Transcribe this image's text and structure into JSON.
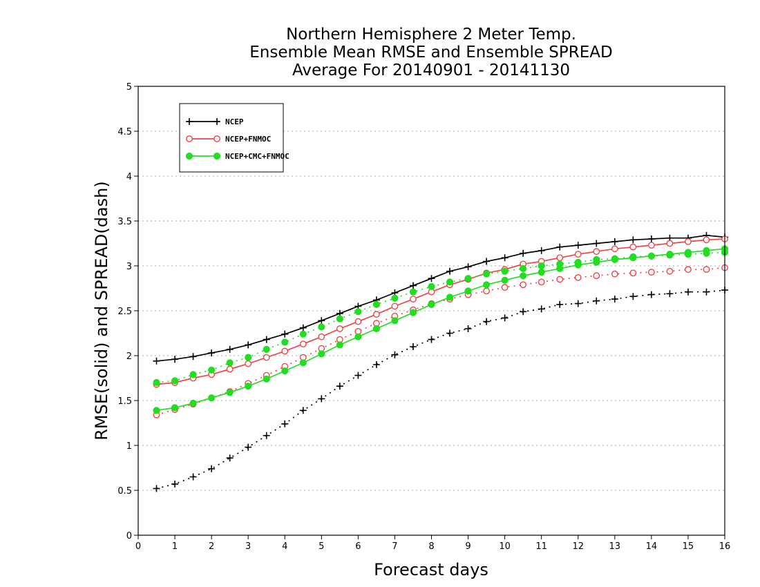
{
  "chart_data": {
    "type": "line",
    "title": [
      "Northern Hemisphere 2 Meter Temp.",
      "Ensemble Mean RMSE and Ensemble SPREAD",
      "Average For 20140901 - 20141130"
    ],
    "xlabel": "Forecast days",
    "ylabel": "RMSE(solid) and SPREAD(dash)",
    "xlim": [
      0,
      16
    ],
    "ylim": [
      0,
      5
    ],
    "xticks": [
      0,
      1,
      2,
      3,
      4,
      5,
      6,
      7,
      8,
      9,
      10,
      11,
      12,
      13,
      14,
      15,
      16
    ],
    "yticks": [
      0,
      0.5,
      1,
      1.5,
      2,
      2.5,
      3,
      3.5,
      4,
      4.5,
      5
    ],
    "grid": "horizontal dotted",
    "legend_position": "top-left",
    "x": [
      0.5,
      1,
      1.5,
      2,
      2.5,
      3,
      3.5,
      4,
      4.5,
      5,
      5.5,
      6,
      6.5,
      7,
      7.5,
      8,
      8.5,
      9,
      9.5,
      10,
      10.5,
      11,
      11.5,
      12,
      12.5,
      13,
      13.5,
      14,
      14.5,
      15,
      15.5,
      16
    ],
    "series": [
      {
        "name": "NCEP",
        "color": "#000000",
        "marker": "plus",
        "rmse": [
          1.94,
          1.96,
          1.99,
          2.03,
          2.07,
          2.12,
          2.18,
          2.24,
          2.31,
          2.39,
          2.47,
          2.55,
          2.62,
          2.7,
          2.78,
          2.86,
          2.94,
          2.99,
          3.05,
          3.09,
          3.14,
          3.17,
          3.21,
          3.23,
          3.25,
          3.27,
          3.29,
          3.3,
          3.31,
          3.31,
          3.34,
          3.32
        ],
        "spread": [
          0.52,
          0.57,
          0.65,
          0.74,
          0.86,
          0.98,
          1.11,
          1.24,
          1.39,
          1.52,
          1.66,
          1.78,
          1.9,
          2.01,
          2.1,
          2.18,
          2.25,
          2.3,
          2.38,
          2.42,
          2.49,
          2.52,
          2.57,
          2.58,
          2.61,
          2.63,
          2.66,
          2.68,
          2.69,
          2.71,
          2.71,
          2.73
        ]
      },
      {
        "name": "NCEP+FNMOC",
        "color": "#ee4444",
        "marker": "open-circle",
        "rmse": [
          1.68,
          1.7,
          1.75,
          1.79,
          1.85,
          1.91,
          1.98,
          2.05,
          2.13,
          2.21,
          2.3,
          2.38,
          2.46,
          2.55,
          2.63,
          2.71,
          2.79,
          2.85,
          2.92,
          2.96,
          3.02,
          3.05,
          3.09,
          3.13,
          3.16,
          3.19,
          3.21,
          3.23,
          3.25,
          3.27,
          3.29,
          3.3
        ],
        "spread": [
          1.34,
          1.4,
          1.46,
          1.53,
          1.6,
          1.69,
          1.78,
          1.88,
          1.98,
          2.08,
          2.18,
          2.27,
          2.36,
          2.44,
          2.51,
          2.58,
          2.63,
          2.68,
          2.72,
          2.76,
          2.79,
          2.82,
          2.85,
          2.87,
          2.89,
          2.91,
          2.92,
          2.93,
          2.94,
          2.96,
          2.96,
          2.98
        ]
      },
      {
        "name": "NCEP+CMC+FNMOC",
        "color": "#22dd22",
        "marker": "filled-circle",
        "rmse": [
          1.39,
          1.42,
          1.47,
          1.53,
          1.59,
          1.66,
          1.74,
          1.83,
          1.92,
          2.02,
          2.12,
          2.21,
          2.3,
          2.39,
          2.48,
          2.57,
          2.65,
          2.72,
          2.79,
          2.84,
          2.89,
          2.93,
          2.97,
          3.01,
          3.04,
          3.07,
          3.09,
          3.11,
          3.13,
          3.15,
          3.17,
          3.19
        ],
        "spread": [
          1.7,
          1.72,
          1.79,
          1.84,
          1.92,
          1.98,
          2.07,
          2.15,
          2.24,
          2.32,
          2.41,
          2.49,
          2.57,
          2.64,
          2.71,
          2.77,
          2.82,
          2.86,
          2.91,
          2.94,
          2.97,
          3.0,
          3.02,
          3.04,
          3.07,
          3.08,
          3.1,
          3.11,
          3.12,
          3.13,
          3.14,
          3.15
        ]
      }
    ]
  }
}
